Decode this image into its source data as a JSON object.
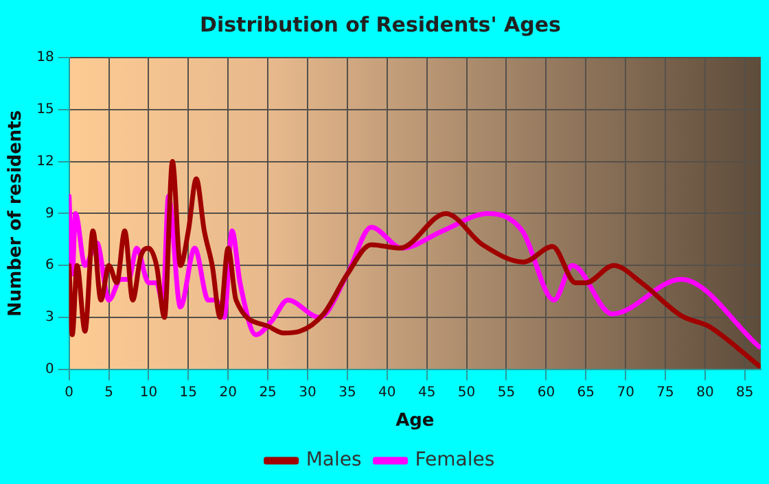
{
  "chart_data": {
    "type": "line",
    "title": "Distribution of Residents' Ages",
    "xlabel": "Age",
    "ylabel": "Number of residents",
    "xlim": [
      0,
      87
    ],
    "xticks": [
      0,
      5,
      10,
      15,
      20,
      25,
      30,
      35,
      40,
      45,
      50,
      55,
      60,
      65,
      70,
      75,
      80,
      85
    ],
    "ylim": [
      0,
      18
    ],
    "yticks": [
      0,
      3,
      6,
      9,
      12,
      15,
      18
    ],
    "grid": true,
    "legend": "bottom",
    "marker": "none",
    "line_style": "solid",
    "series": [
      {
        "name": "Males",
        "color": "#a00000",
        "x": [
          0,
          0.4,
          1,
          2,
          3,
          4,
          5,
          6,
          7,
          8,
          9,
          10,
          11,
          12,
          13,
          14,
          15,
          16,
          17,
          18,
          19,
          20,
          21,
          25,
          27,
          29,
          32,
          35,
          38,
          41.6,
          47.4,
          52,
          57.2,
          60.8,
          63.7,
          65,
          68.5,
          72,
          77,
          80.4,
          82,
          86.8
        ],
        "values": [
          6,
          2,
          6,
          2.2,
          8,
          4,
          6,
          5,
          8,
          4,
          6.5,
          7,
          6,
          3,
          12,
          6,
          8,
          11,
          8,
          6,
          3,
          7,
          4,
          2.5,
          2.1,
          2.2,
          3.2,
          5.5,
          7.2,
          7,
          9,
          7.2,
          6.2,
          7.1,
          5,
          5,
          6,
          5,
          3.1,
          2.5,
          2,
          0.2
        ]
      },
      {
        "name": "Females",
        "color": "#ff00ff",
        "x": [
          0,
          0.4,
          0.8,
          2,
          3.5,
          5,
          6.5,
          7.5,
          8.5,
          10,
          11,
          11.8,
          12.5,
          14,
          15.8,
          17.5,
          18.5,
          19.5,
          20.5,
          21.5,
          23.5,
          25.5,
          27.5,
          31.5,
          35,
          38,
          41.9,
          47,
          52.7,
          57,
          61,
          63.3,
          68.3,
          77,
          86.8
        ],
        "values": [
          10,
          5.5,
          9,
          6,
          7.3,
          4,
          5.2,
          5.2,
          7,
          5,
          5,
          3.8,
          10,
          3.6,
          7,
          4,
          4,
          3,
          8,
          5,
          2,
          2.8,
          4,
          3,
          5.5,
          8.2,
          7,
          8,
          9,
          8,
          4,
          6,
          3.2,
          5.2,
          1.3
        ]
      }
    ]
  }
}
